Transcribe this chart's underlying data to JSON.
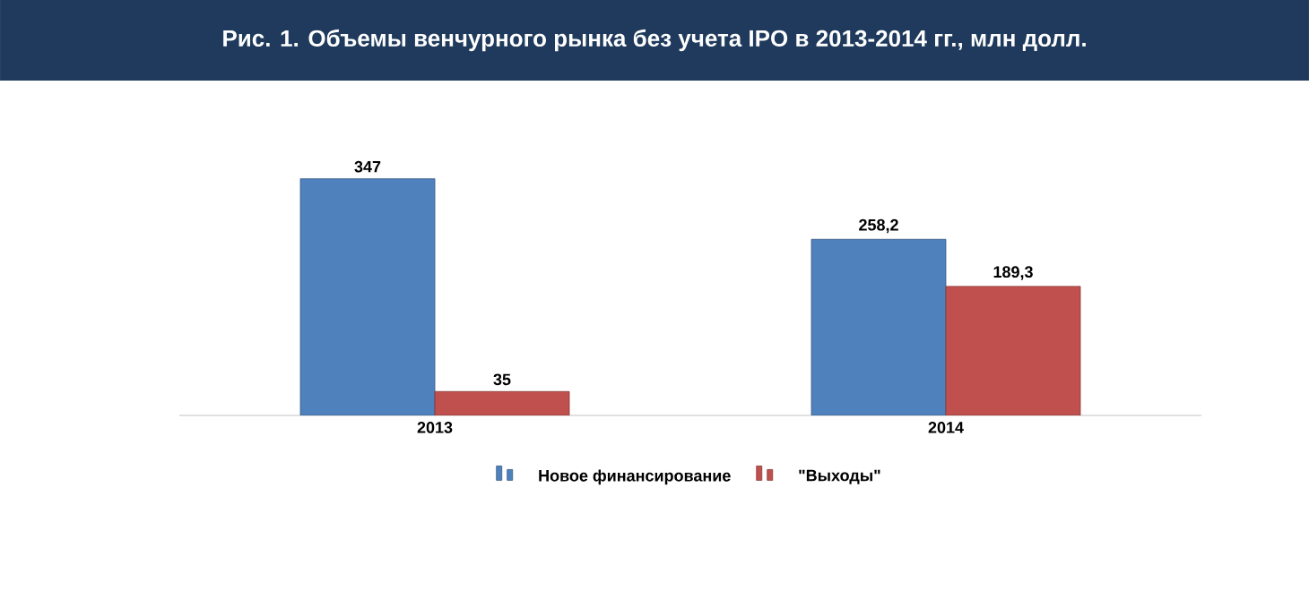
{
  "chart_data": {
    "type": "bar",
    "title": "Рис. 1. Объемы венчурного рынка без учета IPO в 2013-2014 гг., млн долл.",
    "categories": [
      "2013",
      "2014"
    ],
    "series": [
      {
        "name": "Новое финансирование",
        "color": "#4f81bd",
        "values": [
          347,
          258.2
        ],
        "value_labels": [
          "347",
          "258,2"
        ]
      },
      {
        "name": "\"Выходы\"",
        "color": "#c0504d",
        "values": [
          35,
          189.3
        ],
        "value_labels": [
          "35",
          "189,3"
        ]
      }
    ],
    "legend": "bottom"
  }
}
